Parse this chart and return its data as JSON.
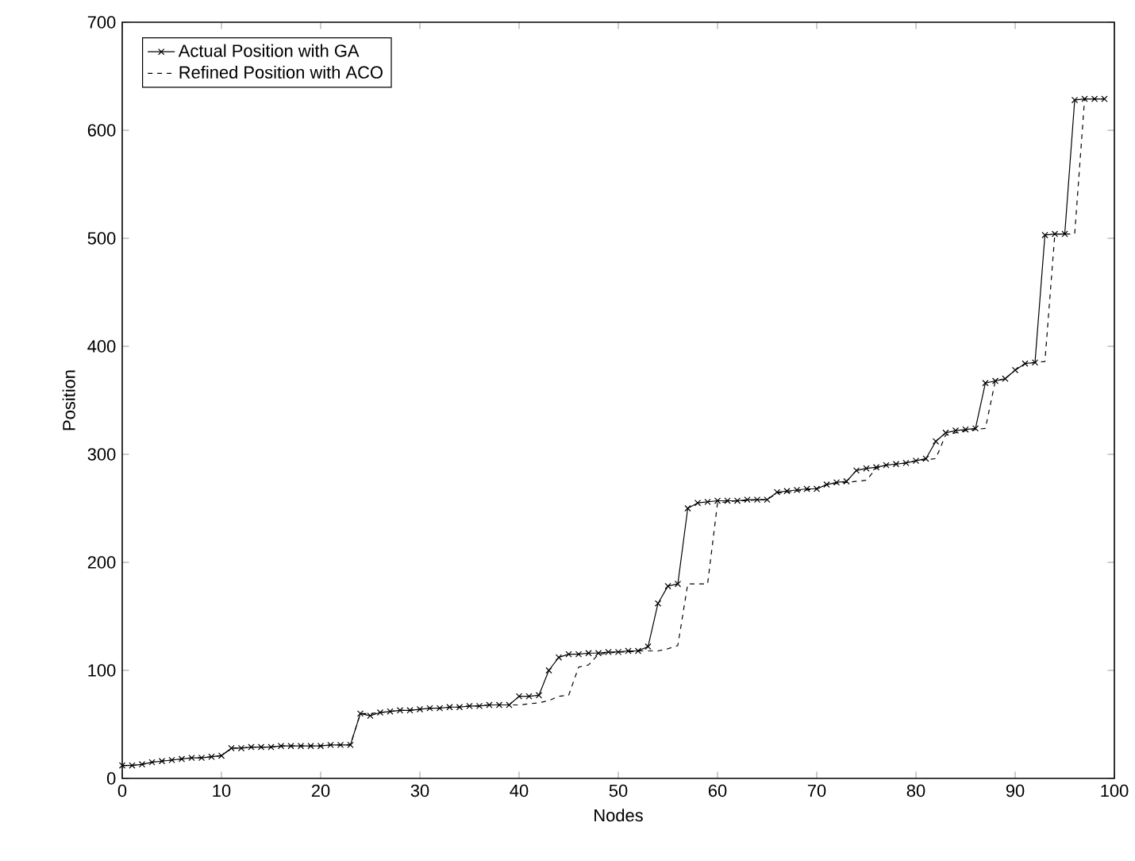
{
  "chart_data": {
    "type": "line",
    "xlabel": "Nodes",
    "ylabel": "Position",
    "legend": "top left",
    "grid": false,
    "xlim": [
      0,
      100
    ],
    "ylim": [
      0,
      700
    ],
    "xticks": [
      0,
      10,
      20,
      30,
      40,
      50,
      60,
      70,
      80,
      90,
      100
    ],
    "yticks": [
      0,
      100,
      200,
      300,
      400,
      500,
      600,
      700
    ],
    "x": [
      0,
      1,
      2,
      3,
      4,
      5,
      6,
      7,
      8,
      9,
      10,
      11,
      12,
      13,
      14,
      15,
      16,
      17,
      18,
      19,
      20,
      21,
      22,
      23,
      24,
      25,
      26,
      27,
      28,
      29,
      30,
      31,
      32,
      33,
      34,
      35,
      36,
      37,
      38,
      39,
      40,
      41,
      42,
      43,
      44,
      45,
      46,
      47,
      48,
      49,
      50,
      51,
      52,
      53,
      54,
      55,
      56,
      57,
      58,
      59,
      60,
      61,
      62,
      63,
      64,
      65,
      66,
      67,
      68,
      69,
      70,
      71,
      72,
      73,
      74,
      75,
      76,
      77,
      78,
      79,
      80,
      81,
      82,
      83,
      84,
      85,
      86,
      87,
      88,
      89,
      90,
      91,
      92,
      93,
      94,
      95,
      96,
      97,
      98,
      99
    ],
    "series": [
      {
        "name": "Actual Position with GA",
        "color": "#000000",
        "marker": "cross",
        "line_style": "solid",
        "values": [
          12,
          12,
          13,
          15,
          16,
          17,
          18,
          19,
          19,
          20,
          21,
          28,
          28,
          29,
          29,
          29,
          30,
          30,
          30,
          30,
          30,
          31,
          31,
          31,
          60,
          58,
          61,
          62,
          63,
          63,
          64,
          65,
          65,
          66,
          66,
          67,
          67,
          68,
          68,
          68,
          76,
          76,
          77,
          100,
          112,
          115,
          115,
          116,
          116,
          117,
          117,
          118,
          118,
          122,
          162,
          178,
          180,
          250,
          255,
          256,
          257,
          257,
          257,
          258,
          258,
          258,
          265,
          266,
          267,
          268,
          268,
          272,
          274,
          275,
          285,
          287,
          288,
          290,
          291,
          292,
          294,
          296,
          312,
          320,
          322,
          323,
          324,
          366,
          368,
          370,
          378,
          384,
          385,
          503,
          504,
          504,
          628,
          629,
          629,
          629
        ]
      },
      {
        "name": "Refined Position with ACO",
        "color": "#000000",
        "marker": "none",
        "line_style": "dashed",
        "values": [
          12,
          12,
          13,
          15,
          16,
          17,
          18,
          19,
          19,
          20,
          21,
          28,
          28,
          29,
          29,
          29,
          30,
          30,
          30,
          30,
          30,
          31,
          31,
          31,
          60,
          60,
          61,
          62,
          63,
          63,
          64,
          65,
          65,
          66,
          66,
          67,
          67,
          68,
          68,
          68,
          68,
          69,
          70,
          72,
          76,
          77,
          103,
          105,
          115,
          116,
          117,
          117,
          118,
          118,
          118,
          120,
          123,
          180,
          180,
          180,
          255,
          256,
          257,
          257,
          258,
          258,
          264,
          265,
          266,
          267,
          268,
          272,
          273,
          274,
          275,
          276,
          287,
          290,
          291,
          292,
          294,
          295,
          296,
          318,
          320,
          322,
          323,
          324,
          368,
          370,
          378,
          384,
          385,
          386,
          504,
          504,
          504,
          629,
          629,
          629
        ]
      }
    ]
  }
}
